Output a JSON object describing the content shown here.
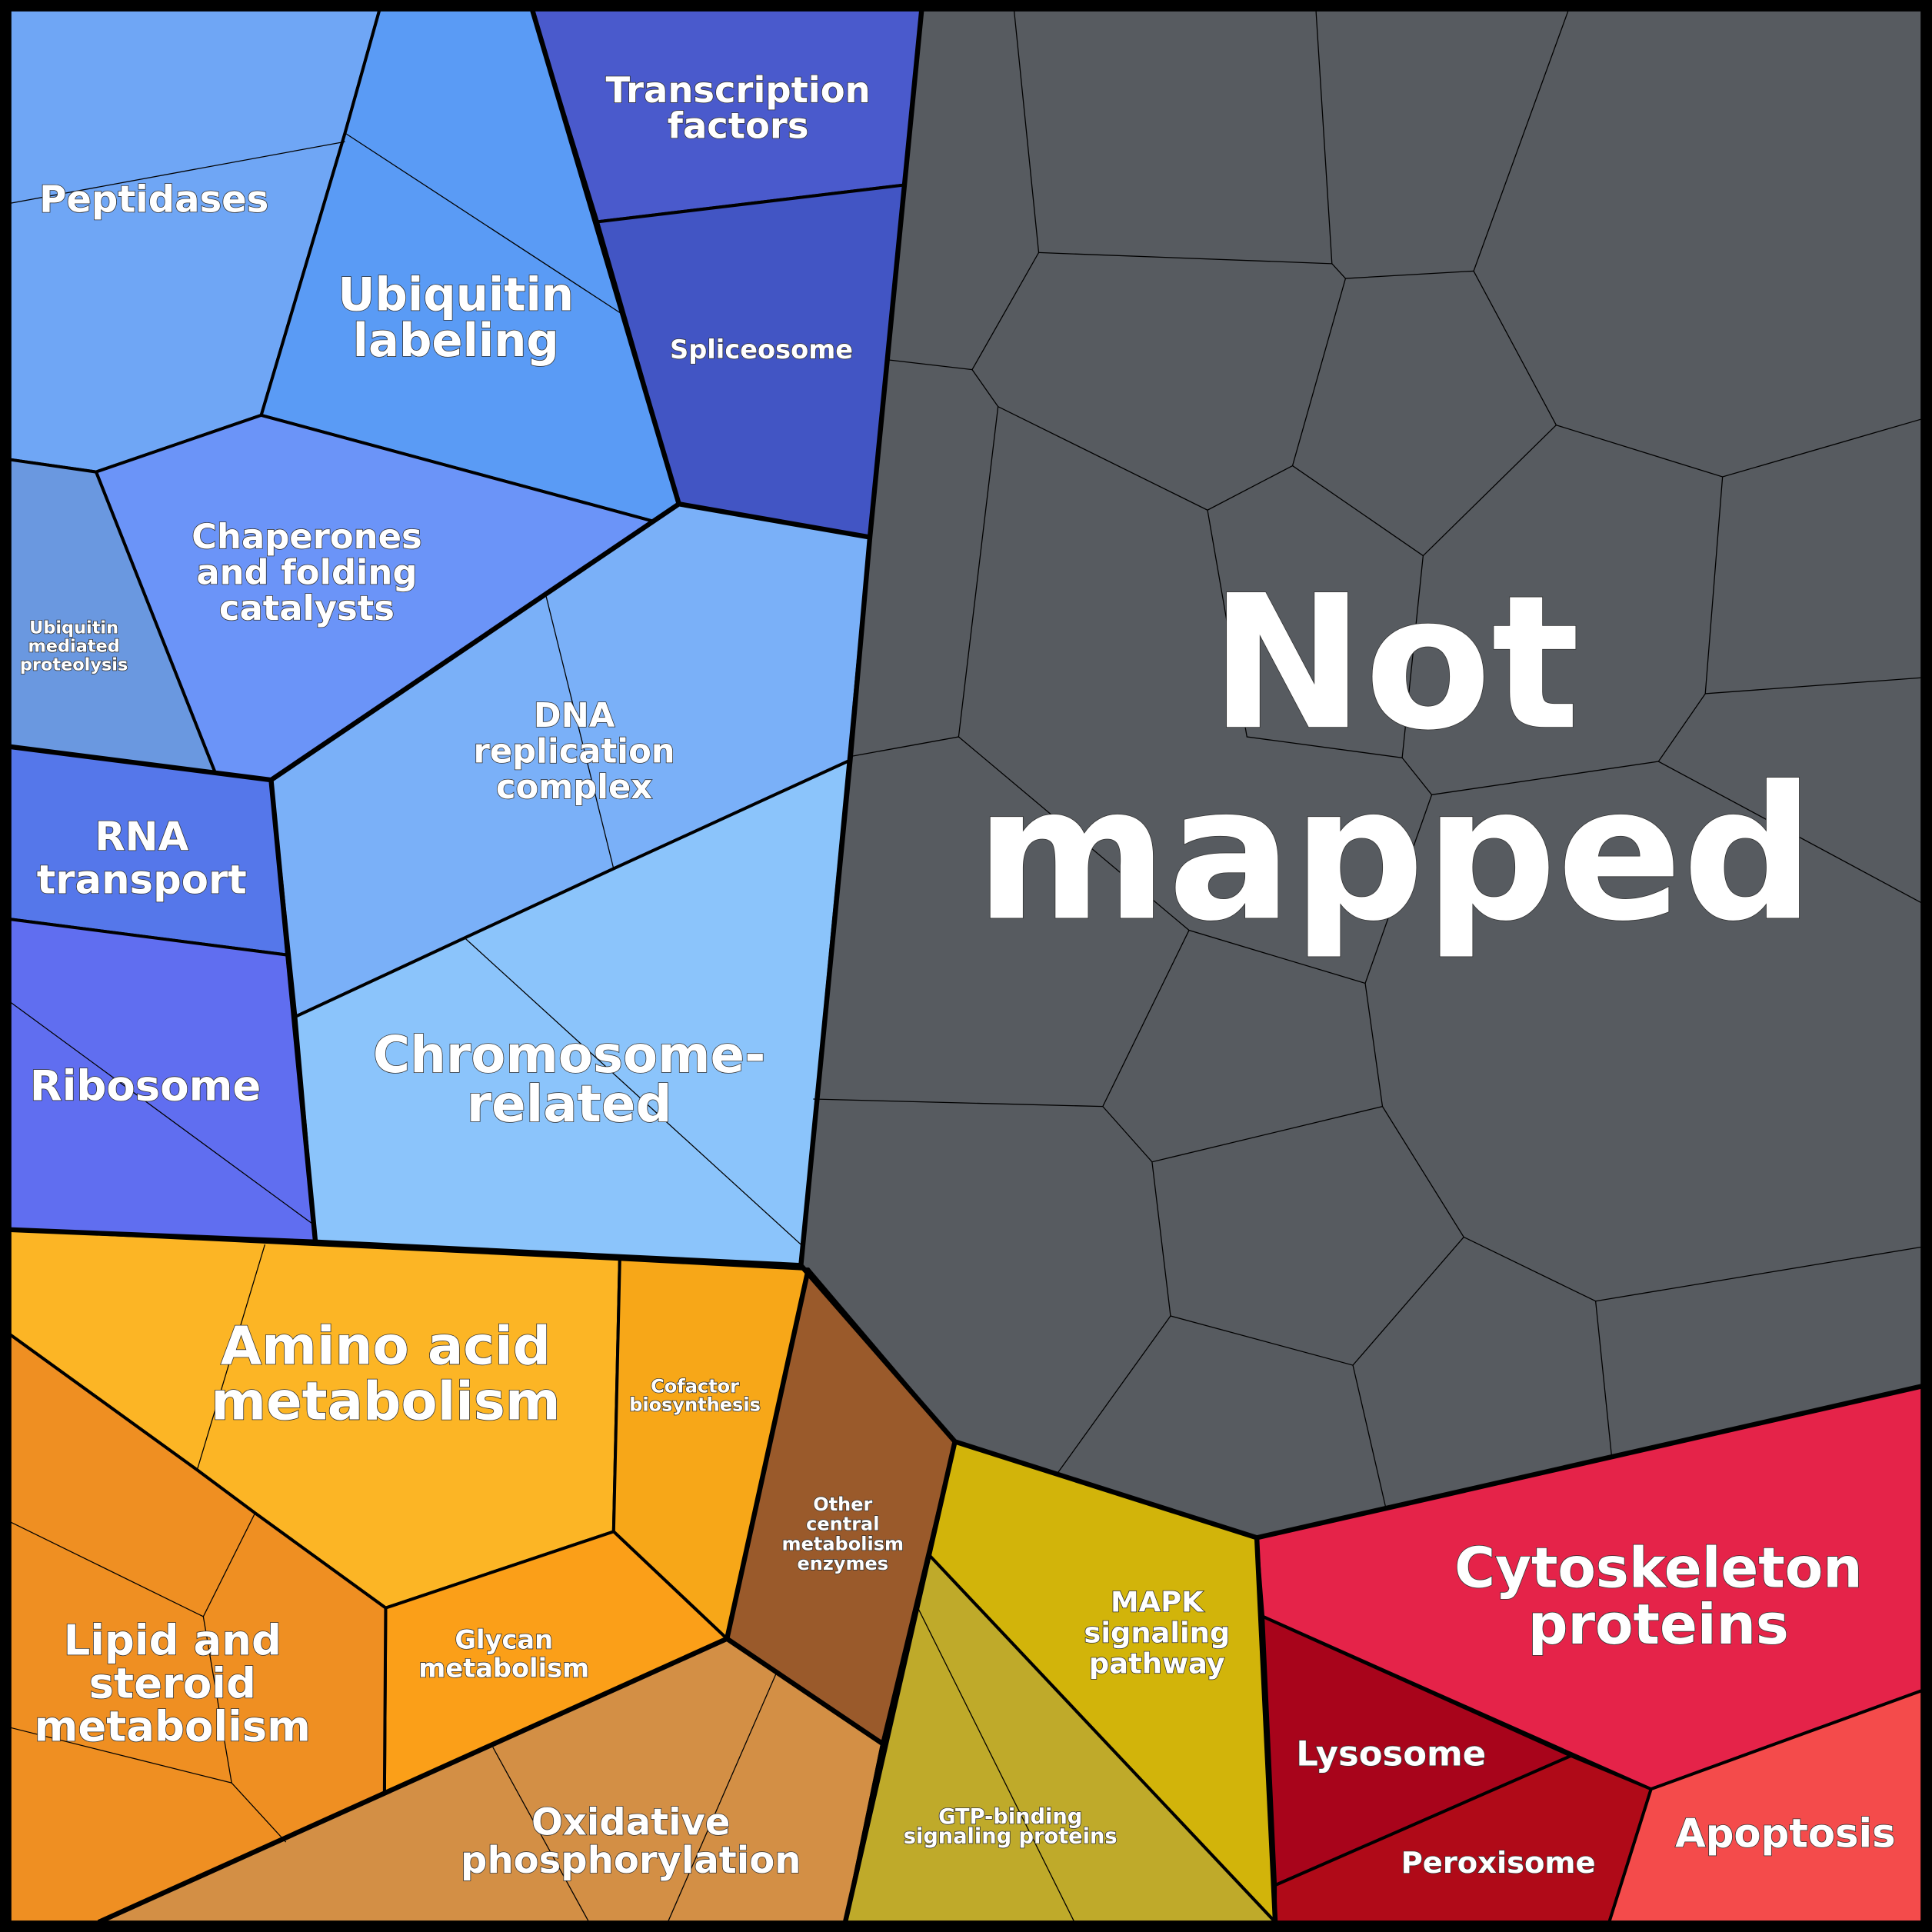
{
  "regions": [
    {
      "label": [
        "Peptidases"
      ]
    },
    {
      "label": [
        "Ubiquitin",
        "labeling"
      ]
    },
    {
      "label": [
        "Chaperones",
        "and folding",
        "catalysts"
      ]
    },
    {
      "label": [
        "Ubiquitin",
        "mediated",
        "proteolysis"
      ]
    },
    {
      "label": [
        "Transcription",
        "factors"
      ]
    },
    {
      "label": [
        "Spliceosome"
      ]
    },
    {
      "label": [
        "DNA",
        "replication",
        "complex"
      ]
    },
    {
      "label": [
        "Chromosome-",
        "related"
      ]
    },
    {
      "label": [
        "RNA",
        "transport"
      ]
    },
    {
      "label": [
        "Ribosome"
      ]
    },
    {
      "label": [
        "Not",
        "mapped"
      ]
    },
    {
      "label": [
        "Amino acid",
        "metabolism"
      ]
    },
    {
      "label": [
        "Cofactor",
        "biosynthesis"
      ]
    },
    {
      "label": [
        "Glycan",
        "metabolism"
      ]
    },
    {
      "label": [
        "Lipid and",
        "steroid",
        "metabolism"
      ]
    },
    {
      "label": [
        "Oxidative",
        "phosphorylation"
      ]
    },
    {
      "label": [
        "Other",
        "central",
        "metabolism",
        "enzymes"
      ]
    },
    {
      "label": [
        "MAPK",
        "signaling",
        "pathway"
      ]
    },
    {
      "label": [
        "GTP-binding",
        "signaling proteins"
      ]
    },
    {
      "label": [
        "Cytoskeleton",
        "proteins"
      ]
    },
    {
      "label": [
        "Lysosome"
      ]
    },
    {
      "label": [
        "Peroxisome"
      ]
    },
    {
      "label": [
        "Apoptosis"
      ]
    }
  ]
}
